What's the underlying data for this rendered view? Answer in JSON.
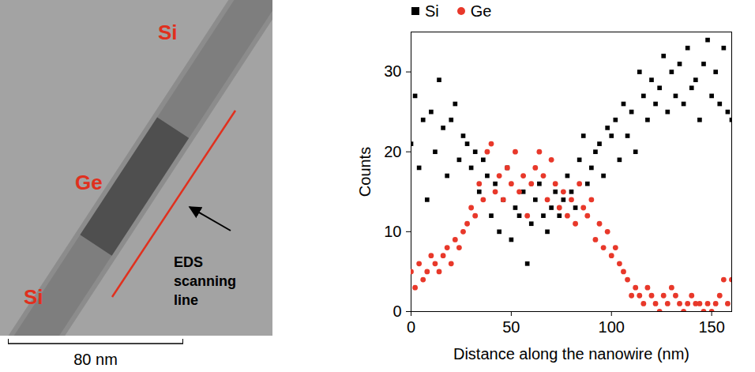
{
  "image": {
    "labels": [
      "Si",
      "Ge",
      "Si"
    ],
    "annotation": "EDS scanning line",
    "scale_bar": "80 nm"
  },
  "chart_data": {
    "type": "scatter",
    "x_label": "Distance along the nanowire (nm)",
    "y_label": "Counts",
    "x": [
      0,
      2,
      4,
      6,
      8,
      10,
      12,
      14,
      16,
      18,
      20,
      22,
      24,
      26,
      28,
      30,
      32,
      34,
      36,
      38,
      40,
      42,
      44,
      46,
      48,
      50,
      52,
      54,
      56,
      58,
      60,
      62,
      64,
      66,
      68,
      70,
      72,
      74,
      76,
      78,
      80,
      82,
      84,
      86,
      88,
      90,
      92,
      94,
      96,
      98,
      100,
      102,
      104,
      106,
      108,
      110,
      112,
      114,
      116,
      118,
      120,
      122,
      124,
      126,
      128,
      130,
      132,
      134,
      136,
      138,
      140,
      142,
      144,
      146,
      148,
      150,
      152,
      154,
      156,
      158,
      160
    ],
    "series": [
      {
        "name": "Si",
        "color": "#000000",
        "marker": "square",
        "values": [
          21,
          27,
          18,
          24,
          14,
          25,
          20,
          29,
          23,
          17,
          24,
          26,
          19,
          22,
          21,
          18,
          20,
          15,
          19,
          17,
          12,
          16,
          10,
          14,
          18,
          9,
          13,
          12,
          15,
          6,
          11,
          14,
          16,
          12,
          10,
          13,
          15,
          12,
          14,
          17,
          15,
          13,
          19,
          22,
          16,
          18,
          20,
          21,
          17,
          23,
          22,
          24,
          19,
          26,
          22,
          25,
          20,
          30,
          27,
          24,
          29,
          26,
          28,
          32,
          25,
          30,
          27,
          31,
          26,
          33,
          28,
          29,
          24,
          31,
          34,
          27,
          30,
          26,
          33,
          25,
          24
        ]
      },
      {
        "name": "Ge",
        "color": "#e8382a",
        "marker": "circle",
        "values": [
          5,
          3,
          6,
          4,
          5,
          7,
          6,
          5,
          7,
          8,
          6,
          9,
          8,
          10,
          11,
          13,
          12,
          16,
          14,
          20,
          21,
          15,
          17,
          14,
          18,
          16,
          20,
          15,
          17,
          12,
          16,
          18,
          20,
          17,
          14,
          19,
          16,
          13,
          15,
          12,
          14,
          11,
          16,
          13,
          12,
          14,
          9,
          11,
          8,
          10,
          7,
          8,
          6,
          5,
          4,
          2,
          3,
          2,
          1,
          3,
          2,
          1,
          0,
          2,
          1,
          3,
          2,
          1,
          0,
          1,
          2,
          1,
          1,
          0,
          1,
          0,
          1,
          2,
          4,
          1,
          4
        ]
      }
    ],
    "xlim": [
      0,
      160
    ],
    "xticks": [
      0,
      50,
      100,
      150
    ],
    "ylim": [
      0,
      35
    ],
    "yticks": [
      0,
      10,
      20,
      30
    ],
    "grid": false,
    "legend": "top"
  }
}
